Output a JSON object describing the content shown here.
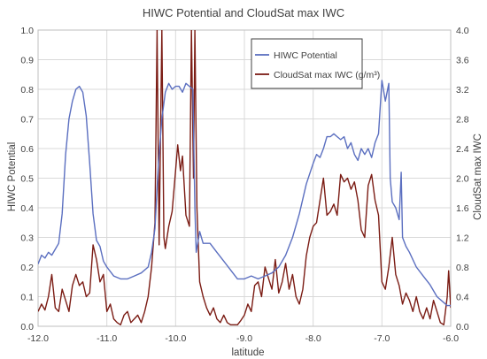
{
  "chart_data": {
    "type": "line",
    "title": "HIWC Potential and CloudSat max IWC",
    "xlabel": "latitude",
    "ylabel": "HIWC Potential",
    "y2label": "CloudSat max IWC",
    "xlim": [
      -12.0,
      -6.0
    ],
    "ylim": [
      0,
      1.0
    ],
    "y2lim": [
      0,
      4.0
    ],
    "x_ticks": [
      "-12.0",
      "-11.0",
      "-10.0",
      "-9.0",
      "-8.0",
      "-7.0",
      "-6.0"
    ],
    "y_ticks": [
      "0.0",
      "0.1",
      "0.2",
      "0.3",
      "0.4",
      "0.5",
      "0.6",
      "0.7",
      "0.8",
      "0.9",
      "1.0"
    ],
    "y2_ticks": [
      "0.0",
      "0.4",
      "0.8",
      "1.2",
      "1.6",
      "2.0",
      "2.4",
      "2.8",
      "3.2",
      "3.6",
      "4.0"
    ],
    "grid": true,
    "legend_position": "top-right",
    "series": [
      {
        "name": "HIWC Potential",
        "axis": "left",
        "color": "#5b6fc0",
        "points": [
          [
            -12.0,
            0.21
          ],
          [
            -11.95,
            0.24
          ],
          [
            -11.9,
            0.23
          ],
          [
            -11.85,
            0.25
          ],
          [
            -11.8,
            0.24
          ],
          [
            -11.75,
            0.26
          ],
          [
            -11.7,
            0.28
          ],
          [
            -11.65,
            0.38
          ],
          [
            -11.6,
            0.58
          ],
          [
            -11.55,
            0.7
          ],
          [
            -11.5,
            0.76
          ],
          [
            -11.45,
            0.8
          ],
          [
            -11.4,
            0.81
          ],
          [
            -11.35,
            0.79
          ],
          [
            -11.3,
            0.71
          ],
          [
            -11.25,
            0.55
          ],
          [
            -11.2,
            0.38
          ],
          [
            -11.15,
            0.29
          ],
          [
            -11.1,
            0.27
          ],
          [
            -11.05,
            0.22
          ],
          [
            -11.0,
            0.2
          ],
          [
            -10.9,
            0.17
          ],
          [
            -10.8,
            0.16
          ],
          [
            -10.7,
            0.16
          ],
          [
            -10.6,
            0.17
          ],
          [
            -10.5,
            0.18
          ],
          [
            -10.4,
            0.2
          ],
          [
            -10.35,
            0.25
          ],
          [
            -10.3,
            0.33
          ],
          [
            -10.25,
            0.55
          ],
          [
            -10.2,
            0.7
          ],
          [
            -10.15,
            0.79
          ],
          [
            -10.1,
            0.82
          ],
          [
            -10.05,
            0.8
          ],
          [
            -10.0,
            0.81
          ],
          [
            -9.95,
            0.81
          ],
          [
            -9.9,
            0.79
          ],
          [
            -9.85,
            0.82
          ],
          [
            -9.8,
            0.81
          ],
          [
            -9.75,
            0.8
          ],
          [
            -9.72,
            0.4
          ],
          [
            -9.7,
            0.25
          ],
          [
            -9.65,
            0.32
          ],
          [
            -9.6,
            0.28
          ],
          [
            -9.5,
            0.28
          ],
          [
            -9.4,
            0.25
          ],
          [
            -9.3,
            0.22
          ],
          [
            -9.2,
            0.19
          ],
          [
            -9.1,
            0.16
          ],
          [
            -9.0,
            0.16
          ],
          [
            -8.9,
            0.17
          ],
          [
            -8.8,
            0.16
          ],
          [
            -8.7,
            0.17
          ],
          [
            -8.6,
            0.18
          ],
          [
            -8.5,
            0.2
          ],
          [
            -8.4,
            0.24
          ],
          [
            -8.3,
            0.3
          ],
          [
            -8.2,
            0.38
          ],
          [
            -8.1,
            0.48
          ],
          [
            -8.0,
            0.55
          ],
          [
            -7.95,
            0.58
          ],
          [
            -7.9,
            0.57
          ],
          [
            -7.85,
            0.6
          ],
          [
            -7.8,
            0.64
          ],
          [
            -7.75,
            0.64
          ],
          [
            -7.7,
            0.65
          ],
          [
            -7.65,
            0.64
          ],
          [
            -7.6,
            0.63
          ],
          [
            -7.55,
            0.64
          ],
          [
            -7.5,
            0.6
          ],
          [
            -7.45,
            0.62
          ],
          [
            -7.4,
            0.58
          ],
          [
            -7.35,
            0.56
          ],
          [
            -7.3,
            0.6
          ],
          [
            -7.25,
            0.58
          ],
          [
            -7.2,
            0.6
          ],
          [
            -7.15,
            0.57
          ],
          [
            -7.1,
            0.62
          ],
          [
            -7.05,
            0.65
          ],
          [
            -7.0,
            0.83
          ],
          [
            -6.95,
            0.76
          ],
          [
            -6.9,
            0.82
          ],
          [
            -6.88,
            0.5
          ],
          [
            -6.85,
            0.42
          ],
          [
            -6.8,
            0.4
          ],
          [
            -6.75,
            0.36
          ],
          [
            -6.72,
            0.52
          ],
          [
            -6.7,
            0.3
          ],
          [
            -6.65,
            0.27
          ],
          [
            -6.6,
            0.25
          ],
          [
            -6.5,
            0.2
          ],
          [
            -6.4,
            0.17
          ],
          [
            -6.3,
            0.14
          ],
          [
            -6.2,
            0.1
          ],
          [
            -6.1,
            0.08
          ],
          [
            -6.05,
            0.07
          ],
          [
            -6.0,
            0.07
          ]
        ]
      },
      {
        "name": "CloudSat max IWC (g/m³)",
        "axis": "right",
        "color": "#7b1c14",
        "points": [
          [
            -12.0,
            0.2
          ],
          [
            -11.95,
            0.3
          ],
          [
            -11.9,
            0.22
          ],
          [
            -11.85,
            0.4
          ],
          [
            -11.8,
            0.7
          ],
          [
            -11.75,
            0.25
          ],
          [
            -11.7,
            0.2
          ],
          [
            -11.65,
            0.5
          ],
          [
            -11.6,
            0.35
          ],
          [
            -11.55,
            0.2
          ],
          [
            -11.5,
            0.55
          ],
          [
            -11.45,
            0.7
          ],
          [
            -11.4,
            0.55
          ],
          [
            -11.35,
            0.6
          ],
          [
            -11.3,
            0.4
          ],
          [
            -11.25,
            0.45
          ],
          [
            -11.2,
            1.1
          ],
          [
            -11.15,
            0.9
          ],
          [
            -11.1,
            0.6
          ],
          [
            -11.05,
            0.7
          ],
          [
            -11.0,
            0.2
          ],
          [
            -10.95,
            0.3
          ],
          [
            -10.9,
            0.1
          ],
          [
            -10.85,
            0.05
          ],
          [
            -10.8,
            0.02
          ],
          [
            -10.75,
            0.15
          ],
          [
            -10.7,
            0.2
          ],
          [
            -10.65,
            0.05
          ],
          [
            -10.6,
            0.1
          ],
          [
            -10.55,
            0.15
          ],
          [
            -10.5,
            0.05
          ],
          [
            -10.45,
            0.2
          ],
          [
            -10.4,
            0.4
          ],
          [
            -10.35,
            0.8
          ],
          [
            -10.3,
            1.4
          ],
          [
            -10.27,
            4.0
          ],
          [
            -10.24,
            1.1
          ],
          [
            -10.2,
            4.0
          ],
          [
            -10.17,
            1.2
          ],
          [
            -10.15,
            1.05
          ],
          [
            -10.1,
            1.35
          ],
          [
            -10.05,
            1.55
          ],
          [
            -10.0,
            2.1
          ],
          [
            -9.97,
            2.45
          ],
          [
            -9.93,
            2.1
          ],
          [
            -9.9,
            2.3
          ],
          [
            -9.85,
            1.5
          ],
          [
            -9.8,
            1.35
          ],
          [
            -9.77,
            4.0
          ],
          [
            -9.74,
            2.0
          ],
          [
            -9.72,
            4.0
          ],
          [
            -9.69,
            1.6
          ],
          [
            -9.65,
            0.6
          ],
          [
            -9.6,
            0.4
          ],
          [
            -9.55,
            0.25
          ],
          [
            -9.5,
            0.15
          ],
          [
            -9.45,
            0.25
          ],
          [
            -9.4,
            0.1
          ],
          [
            -9.35,
            0.05
          ],
          [
            -9.3,
            0.15
          ],
          [
            -9.25,
            0.05
          ],
          [
            -9.2,
            0.02
          ],
          [
            -9.1,
            0.02
          ],
          [
            -9.05,
            0.08
          ],
          [
            -9.0,
            0.15
          ],
          [
            -8.95,
            0.3
          ],
          [
            -8.9,
            0.2
          ],
          [
            -8.85,
            0.55
          ],
          [
            -8.8,
            0.6
          ],
          [
            -8.75,
            0.4
          ],
          [
            -8.7,
            0.8
          ],
          [
            -8.65,
            0.65
          ],
          [
            -8.6,
            0.5
          ],
          [
            -8.55,
            0.9
          ],
          [
            -8.5,
            0.45
          ],
          [
            -8.45,
            0.6
          ],
          [
            -8.4,
            0.85
          ],
          [
            -8.35,
            0.5
          ],
          [
            -8.3,
            0.7
          ],
          [
            -8.25,
            0.4
          ],
          [
            -8.2,
            0.3
          ],
          [
            -8.15,
            0.5
          ],
          [
            -8.1,
            0.95
          ],
          [
            -8.05,
            1.2
          ],
          [
            -8.0,
            1.35
          ],
          [
            -7.95,
            1.4
          ],
          [
            -7.9,
            1.7
          ],
          [
            -7.85,
            2.0
          ],
          [
            -7.8,
            1.5
          ],
          [
            -7.75,
            1.55
          ],
          [
            -7.7,
            1.65
          ],
          [
            -7.65,
            1.5
          ],
          [
            -7.6,
            2.05
          ],
          [
            -7.55,
            1.95
          ],
          [
            -7.5,
            2.0
          ],
          [
            -7.45,
            1.85
          ],
          [
            -7.4,
            1.95
          ],
          [
            -7.35,
            1.7
          ],
          [
            -7.3,
            1.3
          ],
          [
            -7.25,
            1.2
          ],
          [
            -7.2,
            1.9
          ],
          [
            -7.15,
            2.05
          ],
          [
            -7.1,
            1.7
          ],
          [
            -7.05,
            1.5
          ],
          [
            -7.0,
            0.6
          ],
          [
            -6.95,
            0.5
          ],
          [
            -6.9,
            0.8
          ],
          [
            -6.85,
            1.2
          ],
          [
            -6.8,
            0.7
          ],
          [
            -6.75,
            0.55
          ],
          [
            -6.7,
            0.3
          ],
          [
            -6.65,
            0.45
          ],
          [
            -6.6,
            0.35
          ],
          [
            -6.55,
            0.2
          ],
          [
            -6.5,
            0.4
          ],
          [
            -6.45,
            0.2
          ],
          [
            -6.4,
            0.1
          ],
          [
            -6.35,
            0.25
          ],
          [
            -6.3,
            0.1
          ],
          [
            -6.25,
            0.35
          ],
          [
            -6.2,
            0.2
          ],
          [
            -6.15,
            0.05
          ],
          [
            -6.1,
            0.02
          ],
          [
            -6.05,
            0.4
          ],
          [
            -6.03,
            0.75
          ],
          [
            -6.0,
            0.25
          ]
        ]
      }
    ]
  }
}
